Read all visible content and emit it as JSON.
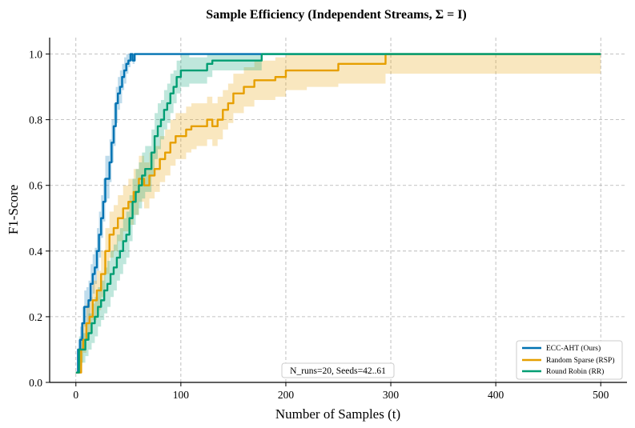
{
  "chart_data": {
    "type": "line",
    "title": "Sample Efficiency (Independent Streams, Σ = I)",
    "xlabel": "Number of Samples (t)",
    "ylabel": "F1-Score",
    "xlim": [
      -25,
      525
    ],
    "ylim": [
      0.0,
      1.05
    ],
    "xticks": [
      0,
      100,
      200,
      300,
      400,
      500
    ],
    "yticks": [
      0.0,
      0.2,
      0.4,
      0.6,
      0.8,
      1.0
    ],
    "xtick_labels": [
      "0",
      "100",
      "200",
      "300",
      "400",
      "500"
    ],
    "ytick_labels": [
      "0.0",
      "0.2",
      "0.4",
      "0.6",
      "0.8",
      "1.0"
    ],
    "grid": true,
    "legend_position": "bottom-right",
    "annotation": "N_runs=20, Seeds=42..61",
    "series": [
      {
        "name": "ECC-AHT (Ours)",
        "color": "#0072B2",
        "x": [
          0,
          2,
          4,
          6,
          8,
          10,
          12,
          14,
          16,
          18,
          20,
          22,
          24,
          26,
          28,
          30,
          32,
          34,
          36,
          38,
          40,
          42,
          44,
          46,
          48,
          50,
          52,
          54,
          56,
          58,
          500
        ],
        "y": [
          0.03,
          0.1,
          0.13,
          0.18,
          0.23,
          0.23,
          0.25,
          0.3,
          0.33,
          0.35,
          0.4,
          0.45,
          0.5,
          0.55,
          0.62,
          0.62,
          0.67,
          0.73,
          0.78,
          0.85,
          0.88,
          0.9,
          0.93,
          0.95,
          0.97,
          0.98,
          1.0,
          0.98,
          1.0,
          1.0,
          1.0
        ],
        "lower": [
          0.03,
          0.06,
          0.09,
          0.13,
          0.17,
          0.18,
          0.2,
          0.25,
          0.27,
          0.3,
          0.34,
          0.38,
          0.44,
          0.49,
          0.55,
          0.56,
          0.61,
          0.67,
          0.72,
          0.79,
          0.83,
          0.85,
          0.89,
          0.91,
          0.94,
          0.96,
          0.98,
          0.97,
          1.0,
          1.0,
          1.0
        ],
        "upper": [
          0.03,
          0.13,
          0.17,
          0.23,
          0.28,
          0.29,
          0.31,
          0.36,
          0.39,
          0.41,
          0.47,
          0.52,
          0.57,
          0.62,
          0.69,
          0.69,
          0.74,
          0.8,
          0.85,
          0.9,
          0.93,
          0.95,
          0.97,
          0.99,
          1.0,
          1.0,
          1.0,
          1.0,
          1.0,
          1.0,
          1.0
        ]
      },
      {
        "name": "Random Sparse (RSP)",
        "color": "#E69F00",
        "x": [
          0,
          3,
          5,
          7,
          10,
          13,
          16,
          20,
          24,
          28,
          32,
          36,
          40,
          45,
          50,
          55,
          60,
          65,
          70,
          75,
          80,
          85,
          90,
          95,
          100,
          105,
          110,
          115,
          120,
          125,
          130,
          135,
          140,
          145,
          150,
          155,
          160,
          165,
          170,
          180,
          190,
          200,
          210,
          220,
          230,
          240,
          250,
          260,
          270,
          280,
          290,
          295,
          500
        ],
        "y": [
          0.03,
          0.03,
          0.1,
          0.13,
          0.18,
          0.2,
          0.25,
          0.28,
          0.33,
          0.4,
          0.45,
          0.47,
          0.5,
          0.53,
          0.55,
          0.58,
          0.62,
          0.6,
          0.63,
          0.65,
          0.68,
          0.7,
          0.73,
          0.75,
          0.75,
          0.77,
          0.78,
          0.78,
          0.78,
          0.8,
          0.78,
          0.8,
          0.83,
          0.85,
          0.88,
          0.88,
          0.9,
          0.9,
          0.92,
          0.92,
          0.93,
          0.95,
          0.95,
          0.95,
          0.95,
          0.95,
          0.97,
          0.97,
          0.97,
          0.97,
          0.97,
          1.0,
          1.0
        ],
        "lower": [
          0.03,
          0.03,
          0.06,
          0.09,
          0.13,
          0.15,
          0.19,
          0.22,
          0.26,
          0.33,
          0.38,
          0.4,
          0.43,
          0.46,
          0.48,
          0.51,
          0.55,
          0.53,
          0.56,
          0.58,
          0.61,
          0.63,
          0.66,
          0.68,
          0.68,
          0.7,
          0.71,
          0.72,
          0.72,
          0.74,
          0.72,
          0.74,
          0.77,
          0.79,
          0.82,
          0.82,
          0.84,
          0.84,
          0.86,
          0.86,
          0.87,
          0.89,
          0.89,
          0.9,
          0.9,
          0.9,
          0.91,
          0.91,
          0.91,
          0.91,
          0.91,
          0.94,
          1.0
        ],
        "upper": [
          0.03,
          0.05,
          0.14,
          0.18,
          0.24,
          0.26,
          0.31,
          0.34,
          0.4,
          0.47,
          0.52,
          0.54,
          0.57,
          0.6,
          0.62,
          0.65,
          0.69,
          0.67,
          0.7,
          0.72,
          0.75,
          0.77,
          0.8,
          0.82,
          0.82,
          0.84,
          0.85,
          0.85,
          0.85,
          0.87,
          0.85,
          0.87,
          0.89,
          0.91,
          0.94,
          0.94,
          0.96,
          0.96,
          0.98,
          0.98,
          0.99,
          1.0,
          1.0,
          1.0,
          1.0,
          1.0,
          1.0,
          1.0,
          1.0,
          1.0,
          1.0,
          1.0,
          1.0
        ]
      },
      {
        "name": "Round Robin (RR)",
        "color": "#009E73",
        "x": [
          0,
          3,
          6,
          9,
          12,
          15,
          18,
          21,
          24,
          27,
          30,
          33,
          36,
          39,
          42,
          45,
          48,
          51,
          54,
          57,
          60,
          63,
          66,
          69,
          72,
          75,
          78,
          81,
          84,
          87,
          90,
          93,
          96,
          100,
          104,
          108,
          112,
          116,
          120,
          125,
          130,
          135,
          140,
          150,
          160,
          170,
          177,
          500
        ],
        "y": [
          0.03,
          0.1,
          0.1,
          0.13,
          0.15,
          0.18,
          0.2,
          0.23,
          0.25,
          0.28,
          0.3,
          0.33,
          0.35,
          0.38,
          0.4,
          0.43,
          0.45,
          0.5,
          0.55,
          0.58,
          0.6,
          0.63,
          0.65,
          0.65,
          0.7,
          0.75,
          0.78,
          0.8,
          0.83,
          0.85,
          0.88,
          0.9,
          0.93,
          0.95,
          0.95,
          0.95,
          0.95,
          0.95,
          0.95,
          0.97,
          0.98,
          0.98,
          0.98,
          0.98,
          0.98,
          0.98,
          1.0,
          1.0
        ],
        "lower": [
          0.03,
          0.05,
          0.06,
          0.08,
          0.1,
          0.12,
          0.14,
          0.17,
          0.19,
          0.21,
          0.23,
          0.26,
          0.28,
          0.31,
          0.33,
          0.36,
          0.38,
          0.43,
          0.48,
          0.51,
          0.53,
          0.56,
          0.58,
          0.58,
          0.63,
          0.68,
          0.71,
          0.74,
          0.77,
          0.79,
          0.82,
          0.85,
          0.88,
          0.9,
          0.9,
          0.91,
          0.91,
          0.91,
          0.91,
          0.93,
          0.95,
          0.95,
          0.95,
          0.95,
          0.95,
          0.95,
          1.0,
          1.0
        ],
        "upper": [
          0.03,
          0.14,
          0.15,
          0.18,
          0.21,
          0.24,
          0.26,
          0.29,
          0.31,
          0.35,
          0.37,
          0.4,
          0.42,
          0.45,
          0.47,
          0.5,
          0.52,
          0.57,
          0.62,
          0.65,
          0.67,
          0.7,
          0.72,
          0.72,
          0.77,
          0.82,
          0.85,
          0.86,
          0.89,
          0.91,
          0.94,
          0.95,
          0.98,
          1.0,
          1.0,
          0.99,
          0.99,
          0.99,
          0.99,
          1.0,
          1.0,
          1.0,
          1.0,
          1.0,
          1.0,
          1.0,
          1.0,
          1.0
        ]
      }
    ]
  }
}
